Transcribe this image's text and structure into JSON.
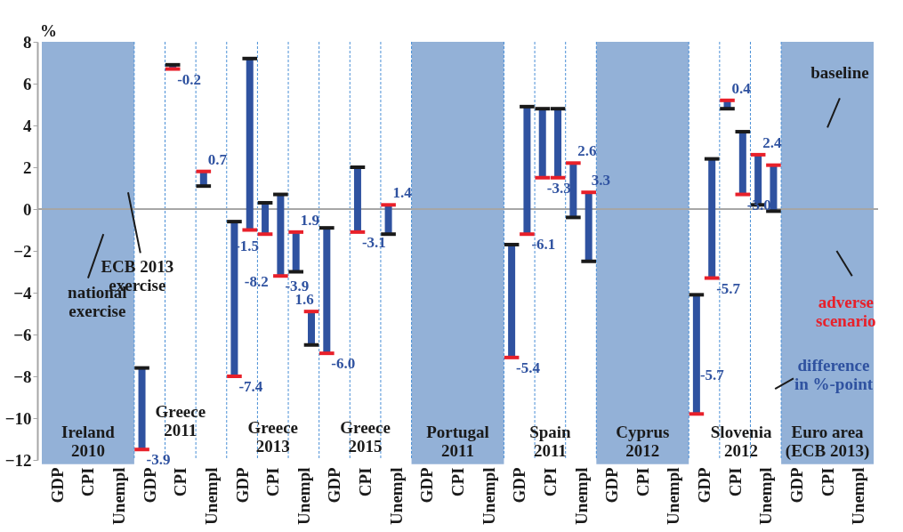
{
  "chart_data": {
    "type": "bar",
    "ylabel": "%",
    "categories": [
      "GDP",
      "CPI",
      "Unempl",
      "GDP",
      "CPI",
      "Unempl",
      "GDP",
      "CPI",
      "Unempl",
      "GDP",
      "CPI",
      "Unempl",
      "GDP",
      "CPI",
      "Unempl",
      "GDP",
      "CPI",
      "Unempl",
      "GDP",
      "CPI",
      "Unempl",
      "GDP",
      "CPI",
      "Unempl",
      "GDP",
      "CPI",
      "Unempl"
    ],
    "series": [
      {
        "color": "#2f52a0",
        "base": [
          null,
          null,
          null,
          -7.6,
          6.9,
          1.1,
          -0.6,
          0.3,
          -3.0,
          -0.9,
          2.0,
          -1.2,
          null,
          null,
          null,
          -1.7,
          4.8,
          -0.4,
          null,
          null,
          null,
          -4.1,
          4.8,
          0.2,
          null,
          null,
          null
        ],
        "values": [
          null,
          null,
          null,
          -3.9,
          -0.2,
          0.7,
          -7.4,
          -1.5,
          1.9,
          -6.0,
          -3.1,
          1.4,
          null,
          null,
          null,
          -5.4,
          -3.3,
          2.6,
          null,
          null,
          null,
          -5.7,
          0.4,
          2.4,
          null,
          null,
          null
        ],
        "value_labels": [
          null,
          null,
          null,
          "-3.9",
          "-0.2",
          "0.7",
          "-7.4",
          "-1.5",
          "1.9",
          "-6.0",
          "-3.1",
          "1.4",
          null,
          null,
          null,
          "-5.4",
          "-3.3",
          "2.6",
          null,
          null,
          null,
          "-5.7",
          "0.4",
          "2.4",
          null,
          null,
          null
        ]
      },
      {
        "color": "#2f52a0",
        "base": [
          null,
          null,
          null,
          null,
          null,
          null,
          7.2,
          0.7,
          -6.5,
          null,
          null,
          null,
          null,
          null,
          null,
          4.9,
          4.8,
          -2.5,
          null,
          null,
          null,
          2.4,
          3.7,
          -0.1,
          null,
          null,
          null
        ],
        "values": [
          null,
          null,
          null,
          null,
          null,
          null,
          -8.2,
          -3.9,
          1.6,
          null,
          null,
          null,
          null,
          null,
          null,
          -6.1,
          -3.3,
          3.3,
          null,
          null,
          null,
          -5.7,
          -3.0,
          2.2,
          null,
          null,
          null
        ],
        "value_labels": [
          null,
          null,
          null,
          null,
          null,
          null,
          "-8.2",
          "-3.9",
          "1.6",
          null,
          null,
          null,
          null,
          null,
          null,
          "-6.1",
          null,
          "3.3",
          null,
          null,
          null,
          "-5.7",
          "-3.0",
          null,
          null,
          null,
          null
        ]
      }
    ],
    "ylim": [
      -12,
      8
    ],
    "yticks": [
      -12,
      -10,
      -8,
      -6,
      -4,
      -2,
      0,
      2,
      4,
      6,
      8
    ],
    "grid": "x",
    "ref_lines": [
      {
        "axis": "y",
        "value": 0,
        "color": "#a6a6a6"
      }
    ],
    "annotations": [
      "Ireland\n2010",
      "Portugal\n2011",
      "Cyprus\n2012",
      "Euro area\n(ECB 2013)",
      "Greece\n2011",
      "Greece\n2013",
      "Greece\n2015",
      "Spain\n2011",
      "Slovenia\n2012",
      "national\nexercise",
      "ECB 2013\nexercise",
      "baseline",
      "adverse\nscenario",
      "difference\nin %-point"
    ]
  }
}
